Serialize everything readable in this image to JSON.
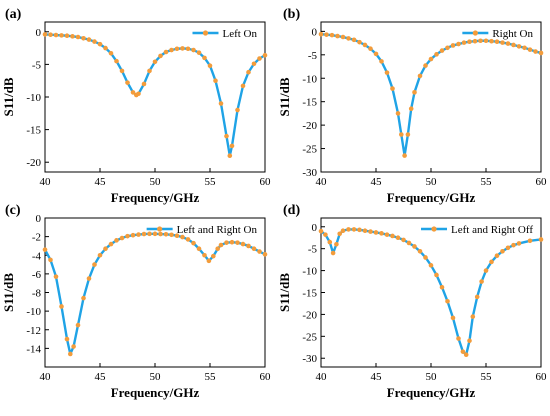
{
  "colors": {
    "line": "#1fa3e6",
    "marker": "#f39c3b",
    "axis": "#000000"
  },
  "chart_data": [
    {
      "type": "line",
      "panel_label": "(a)",
      "legend": "Left On",
      "legend_position": "top-right",
      "xlabel": "Frequency/GHz",
      "ylabel": "S11/dB",
      "xlim": [
        40,
        60
      ],
      "ylim": [
        -21.5,
        1.5
      ],
      "x_ticks": [
        40,
        45,
        50,
        55,
        60
      ],
      "y_ticks": [
        0,
        -5,
        -10,
        -15,
        -20
      ],
      "series": [
        {
          "x": [
            40,
            40.5,
            41,
            41.5,
            42,
            42.5,
            43,
            43.5,
            44,
            44.5,
            45,
            45.5,
            46,
            46.5,
            47,
            47.5,
            48,
            48.3,
            48.5,
            49,
            49.5,
            50,
            50.5,
            51,
            51.5,
            52,
            52.5,
            53,
            53.5,
            54,
            54.5,
            55,
            55.5,
            56,
            56.5,
            56.8,
            57,
            57.5,
            58,
            58.5,
            59,
            59.5,
            60
          ],
          "y": [
            -0.4,
            -0.45,
            -0.5,
            -0.55,
            -0.6,
            -0.7,
            -0.8,
            -1.0,
            -1.2,
            -1.5,
            -1.9,
            -2.5,
            -3.3,
            -4.5,
            -6.0,
            -7.8,
            -9.3,
            -9.7,
            -9.5,
            -8.0,
            -6.0,
            -4.6,
            -3.7,
            -3.1,
            -2.8,
            -2.6,
            -2.55,
            -2.6,
            -2.8,
            -3.2,
            -4.0,
            -5.2,
            -7.5,
            -11.0,
            -16.0,
            -19.0,
            -17.5,
            -12.0,
            -8.3,
            -6.2,
            -4.9,
            -4.1,
            -3.6
          ]
        }
      ]
    },
    {
      "type": "line",
      "panel_label": "(b)",
      "legend": "Right On",
      "legend_position": "top-right",
      "xlabel": "Frequency/GHz",
      "ylabel": "S11/dB",
      "xlim": [
        40,
        60
      ],
      "ylim": [
        -30,
        2
      ],
      "x_ticks": [
        40,
        45,
        50,
        55,
        60
      ],
      "y_ticks": [
        0,
        -5,
        -10,
        -15,
        -20,
        -25,
        -30
      ],
      "series": [
        {
          "x": [
            40,
            40.5,
            41,
            41.5,
            42,
            42.5,
            43,
            43.5,
            44,
            44.5,
            45,
            45.5,
            46,
            46.5,
            47,
            47.3,
            47.6,
            47.9,
            48.2,
            48.5,
            49,
            49.5,
            50,
            50.5,
            51,
            51.5,
            52,
            52.5,
            53,
            53.5,
            54,
            54.5,
            55,
            55.5,
            56,
            56.5,
            57,
            57.5,
            58,
            58.5,
            59,
            59.5,
            60
          ],
          "y": [
            -0.6,
            -0.7,
            -0.8,
            -1.0,
            -1.2,
            -1.5,
            -1.8,
            -2.3,
            -2.9,
            -3.7,
            -4.8,
            -6.4,
            -8.8,
            -12.2,
            -17.5,
            -22.0,
            -26.5,
            -22.0,
            -16.5,
            -13.0,
            -9.5,
            -7.3,
            -5.9,
            -4.9,
            -4.1,
            -3.5,
            -3.0,
            -2.7,
            -2.4,
            -2.2,
            -2.1,
            -2.0,
            -2.0,
            -2.1,
            -2.2,
            -2.4,
            -2.6,
            -2.9,
            -3.2,
            -3.5,
            -3.9,
            -4.3,
            -4.6
          ]
        }
      ]
    },
    {
      "type": "line",
      "panel_label": "(c)",
      "legend": "Left and Right On",
      "legend_position": "top-right",
      "xlabel": "Frequency/GHz",
      "ylabel": "S11/dB",
      "xlim": [
        40,
        60
      ],
      "ylim": [
        -16,
        0
      ],
      "x_ticks": [
        40,
        45,
        50,
        55,
        60
      ],
      "y_ticks": [
        0,
        -2,
        -4,
        -6,
        -8,
        -10,
        -12,
        -14
      ],
      "series": [
        {
          "x": [
            40,
            40.5,
            41,
            41.5,
            42,
            42.3,
            42.6,
            43,
            43.5,
            44,
            44.5,
            45,
            45.5,
            46,
            46.5,
            47,
            47.5,
            48,
            48.5,
            49,
            49.5,
            50,
            50.5,
            51,
            51.5,
            52,
            52.5,
            53,
            53.5,
            54,
            54.5,
            54.9,
            55.3,
            55.7,
            56,
            56.5,
            57,
            57.5,
            58,
            58.5,
            59,
            59.5,
            60
          ],
          "y": [
            -3.4,
            -4.5,
            -6.3,
            -9.5,
            -13.0,
            -14.6,
            -13.8,
            -11.5,
            -8.6,
            -6.5,
            -5.0,
            -4.0,
            -3.3,
            -2.8,
            -2.4,
            -2.15,
            -1.95,
            -1.85,
            -1.78,
            -1.72,
            -1.7,
            -1.7,
            -1.72,
            -1.75,
            -1.8,
            -1.9,
            -2.05,
            -2.3,
            -2.7,
            -3.3,
            -4.0,
            -4.6,
            -4.1,
            -3.3,
            -2.9,
            -2.65,
            -2.6,
            -2.65,
            -2.8,
            -3.0,
            -3.3,
            -3.6,
            -3.9
          ]
        }
      ]
    },
    {
      "type": "line",
      "panel_label": "(d)",
      "legend": "Left and Right Off",
      "legend_position": "top-right",
      "xlabel": "Frequency/GHz",
      "ylabel": "S11/dB",
      "xlim": [
        40,
        60
      ],
      "ylim": [
        -32,
        2
      ],
      "x_ticks": [
        40,
        45,
        50,
        55,
        60
      ],
      "y_ticks": [
        0,
        -5,
        -10,
        -15,
        -20,
        -25,
        -30
      ],
      "series": [
        {
          "x": [
            40,
            40.4,
            40.8,
            41.1,
            41.4,
            41.7,
            42,
            42.5,
            43,
            43.5,
            44,
            44.5,
            45,
            45.5,
            46,
            46.5,
            47,
            47.5,
            48,
            48.5,
            49,
            49.5,
            50,
            50.5,
            51,
            51.5,
            52,
            52.5,
            52.9,
            53.2,
            53.5,
            53.8,
            54.2,
            54.6,
            55,
            55.5,
            56,
            56.5,
            57,
            57.5,
            58,
            59,
            60
          ],
          "y": [
            -1.0,
            -1.8,
            -3.5,
            -6.0,
            -4.0,
            -1.6,
            -0.9,
            -0.6,
            -0.6,
            -0.7,
            -0.9,
            -1.1,
            -1.3,
            -1.5,
            -1.8,
            -2.1,
            -2.5,
            -3.0,
            -3.7,
            -4.5,
            -5.6,
            -7.0,
            -8.8,
            -11.0,
            -13.8,
            -17.0,
            -20.8,
            -25.5,
            -28.5,
            -29.2,
            -26.0,
            -20.5,
            -16.0,
            -12.5,
            -10.0,
            -8.0,
            -6.6,
            -5.6,
            -4.8,
            -4.2,
            -3.8,
            -3.2,
            -2.9
          ]
        }
      ]
    }
  ]
}
